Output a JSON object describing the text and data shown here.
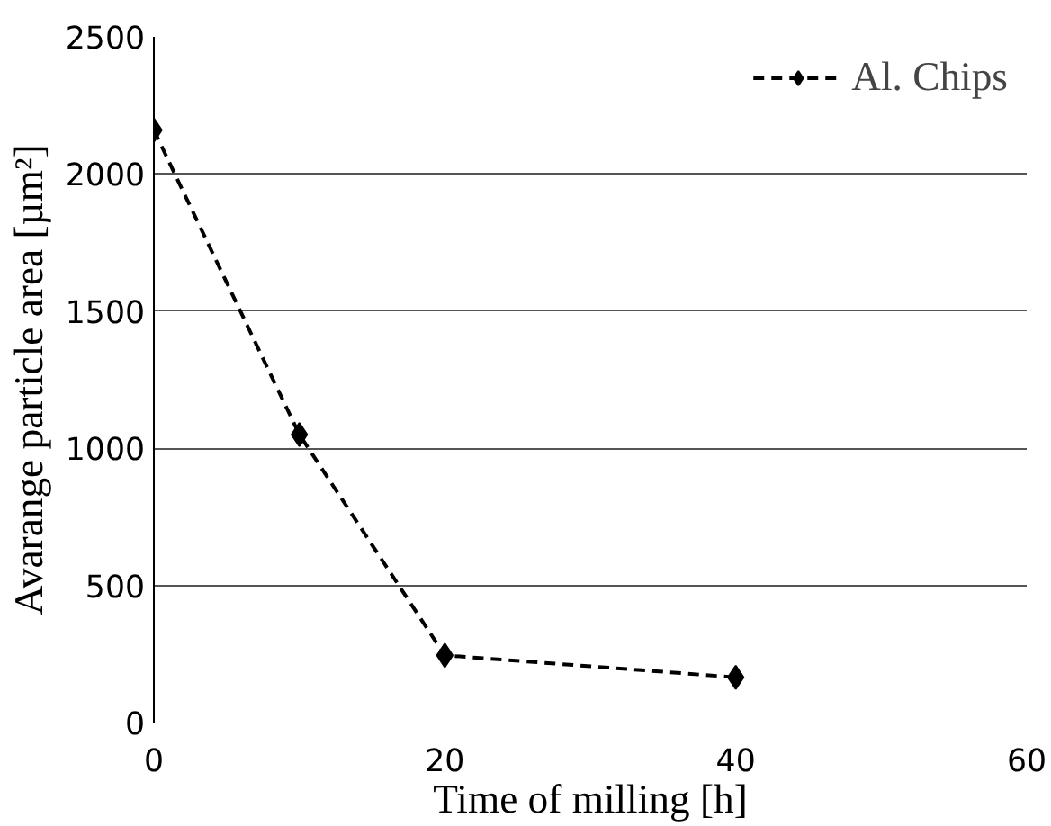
{
  "chart_data": {
    "type": "line",
    "xlabel": "Time of milling [h]",
    "ylabel": "Avarange particle area [µm²]",
    "x": [
      0,
      10,
      20,
      40
    ],
    "series": [
      {
        "name": "Al. Chips",
        "color": "#000000",
        "values": [
          2160,
          1050,
          245,
          165
        ]
      }
    ],
    "xlim": [
      0,
      60
    ],
    "xticks": [
      0,
      20,
      40,
      60
    ],
    "ylim": [
      0,
      2500
    ],
    "yticks": [
      0,
      500,
      1000,
      1500,
      2000,
      2500
    ],
    "grid": "y",
    "legend": "top right",
    "marker": "diamond",
    "line_style": "dashed"
  }
}
